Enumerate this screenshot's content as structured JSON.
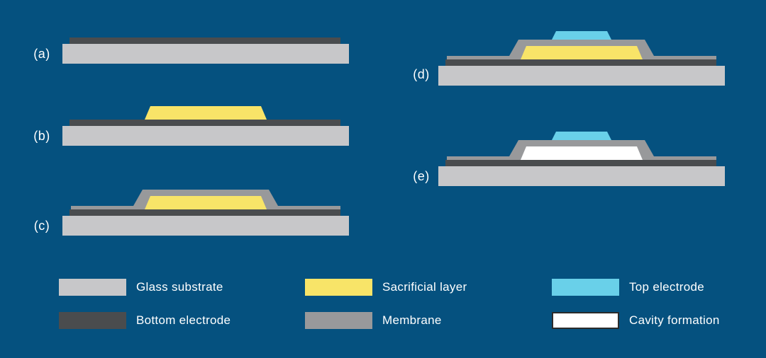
{
  "colors": {
    "background": "#05517F",
    "glass_substrate": "#C7C7C9",
    "bottom_electrode": "#4A4C4E",
    "sacrificial_layer": "#F8E468",
    "membrane": "#98999B",
    "top_electrode": "#69D0E9",
    "cavity": "#FFFFFF",
    "cavity_border": "#2B2B2B",
    "text": "#FFFFFF"
  },
  "panels": [
    {
      "label": "(a)",
      "layers": {
        "glass_substrate": true,
        "bottom_electrode": true
      }
    },
    {
      "label": "(b)",
      "layers": {
        "glass_substrate": true,
        "bottom_electrode": true,
        "sacrificial_layer": true
      }
    },
    {
      "label": "(c)",
      "layers": {
        "glass_substrate": true,
        "bottom_electrode": true,
        "sacrificial_layer": true,
        "membrane": true
      }
    },
    {
      "label": "(d)",
      "layers": {
        "glass_substrate": true,
        "bottom_electrode": true,
        "sacrificial_layer": true,
        "membrane": true,
        "top_electrode": true
      }
    },
    {
      "label": "(e)",
      "layers": {
        "glass_substrate": true,
        "bottom_electrode": true,
        "membrane": true,
        "top_electrode": true,
        "cavity": true
      }
    }
  ],
  "legend": {
    "items": [
      {
        "label": "Glass substrate",
        "color_key": "glass_substrate"
      },
      {
        "label": "Bottom electrode",
        "color_key": "bottom_electrode"
      },
      {
        "label": "Sacrificial layer",
        "color_key": "sacrificial_layer"
      },
      {
        "label": "Membrane",
        "color_key": "membrane"
      },
      {
        "label": "Top electrode",
        "color_key": "top_electrode"
      },
      {
        "label": "Cavity formation",
        "color_key": "cavity"
      }
    ]
  }
}
